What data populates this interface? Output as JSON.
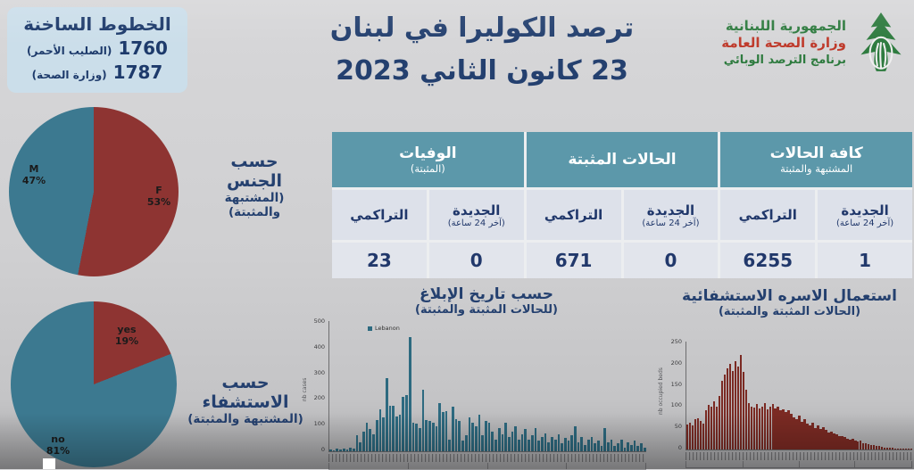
{
  "header": {
    "title_line1": "ترصد الكوليرا في لبنان",
    "title_line2": "23 كانون الثاني 2023",
    "hotlines": {
      "title": "الخطوط الساخنة",
      "items": [
        {
          "number": "1760",
          "label": "(الصليب الأحمر)"
        },
        {
          "number": "1787",
          "label": "(وزارة الصحة)"
        }
      ]
    },
    "logo": {
      "line1": "الجمهورية اللبنانية",
      "line2": "وزارة الصحة العامة",
      "line3": "برنامج الترصد الوبائي"
    }
  },
  "table": {
    "groups": [
      {
        "title": "كافة الحالات",
        "subtitle": "المشتبهة والمثبتة",
        "columns": [
          {
            "label": "الجديدة",
            "sub": "(آخر 24 ساعة)",
            "value": "1"
          },
          {
            "label": "التراكمي",
            "sub": "",
            "value": "6255"
          }
        ]
      },
      {
        "title": "الحالات المثبتة",
        "subtitle": "",
        "columns": [
          {
            "label": "الجديدة",
            "sub": "(آخر 24 ساعة)",
            "value": "0"
          },
          {
            "label": "التراكمي",
            "sub": "",
            "value": "671"
          }
        ]
      },
      {
        "title": "الوفيات",
        "subtitle": "(المثبتة)",
        "columns": [
          {
            "label": "الجديدة",
            "sub": "(آخر 24 ساعة)",
            "value": "0"
          },
          {
            "label": "التراكمي",
            "sub": "",
            "value": "23"
          }
        ]
      }
    ]
  },
  "chart_data": [
    {
      "type": "pie",
      "title": "حسب الجنس",
      "subtitle": "(المشتبهة والمثبتة)",
      "labels": [
        "F",
        "M"
      ],
      "values": [
        53,
        47
      ],
      "colors": [
        "#8e3432",
        "#3c7990"
      ],
      "slice_labels": [
        {
          "name": "F",
          "pct": "53%"
        },
        {
          "name": "M",
          "pct": "47%"
        }
      ]
    },
    {
      "type": "pie",
      "title": "حسب الاستشفاء",
      "subtitle": "(المشتبهة والمثبتة)",
      "labels": [
        "yes",
        "no"
      ],
      "values": [
        19,
        81
      ],
      "colors": [
        "#8e3432",
        "#3c7990"
      ],
      "slice_labels": [
        {
          "name": "yes",
          "pct": "19%"
        },
        {
          "name": "no",
          "pct": "81%"
        }
      ]
    },
    {
      "type": "bar",
      "title": "حسب تاريخ الإبلاغ",
      "subtitle": "(للحالات المثبتة والمثبتة)",
      "ylabel": "nb cases",
      "legend": [
        "Lebanon"
      ],
      "ylim": [
        0,
        500
      ],
      "yticks": [
        500,
        400,
        300,
        200,
        100,
        0
      ],
      "color": "#2d6a80",
      "x_ticks": "rotated daily date labels (illegible at source resolution)",
      "values": [
        8,
        5,
        10,
        6,
        12,
        8,
        15,
        10,
        60,
        35,
        75,
        110,
        85,
        65,
        120,
        160,
        130,
        280,
        175,
        175,
        135,
        140,
        210,
        215,
        440,
        110,
        105,
        90,
        235,
        120,
        115,
        110,
        95,
        185,
        150,
        155,
        45,
        170,
        125,
        115,
        40,
        60,
        130,
        110,
        95,
        140,
        60,
        115,
        110,
        75,
        45,
        90,
        65,
        110,
        55,
        75,
        95,
        45,
        65,
        85,
        45,
        60,
        90,
        40,
        55,
        70,
        35,
        55,
        45,
        65,
        30,
        50,
        40,
        60,
        95,
        35,
        55,
        25,
        45,
        55,
        30,
        40,
        20,
        90,
        35,
        45,
        20,
        30,
        45,
        15,
        35,
        25,
        40,
        20,
        30,
        15
      ]
    },
    {
      "type": "bar",
      "title": "استعمال الاسره الاستشفائية",
      "subtitle": "(الحالات المثبتة والمثبتة)",
      "ylabel": "nb occupied beds",
      "ylim": [
        0,
        250
      ],
      "yticks": [
        250,
        200,
        150,
        100,
        50,
        0
      ],
      "color": "#7b2a23",
      "x_ticks": "rotated daily date labels (illegible at source resolution)",
      "values": [
        58,
        62,
        55,
        70,
        73,
        66,
        60,
        90,
        104,
        100,
        111,
        100,
        125,
        160,
        174,
        188,
        198,
        181,
        205,
        192,
        220,
        180,
        139,
        108,
        100,
        97,
        105,
        95,
        100,
        108,
        92,
        100,
        105,
        95,
        100,
        90,
        94,
        86,
        90,
        83,
        75,
        70,
        78,
        65,
        70,
        60,
        55,
        62,
        50,
        55,
        48,
        52,
        45,
        40,
        42,
        38,
        35,
        30,
        32,
        28,
        25,
        22,
        25,
        20,
        18,
        20,
        15,
        15,
        12,
        10,
        10,
        8,
        8,
        6,
        5,
        5,
        4,
        4,
        3,
        3,
        2,
        2,
        2,
        2,
        2
      ]
    }
  ],
  "colors": {
    "accent_navy": "#24406f",
    "table_header_teal": "#5c98aa",
    "pie_teal": "#3c7990",
    "pie_maroon": "#8e3432",
    "bar_teal": "#2d6a80",
    "bar_maroon": "#7b2a23",
    "logo_green": "#2e7b3f",
    "logo_red": "#bf3a2b"
  }
}
